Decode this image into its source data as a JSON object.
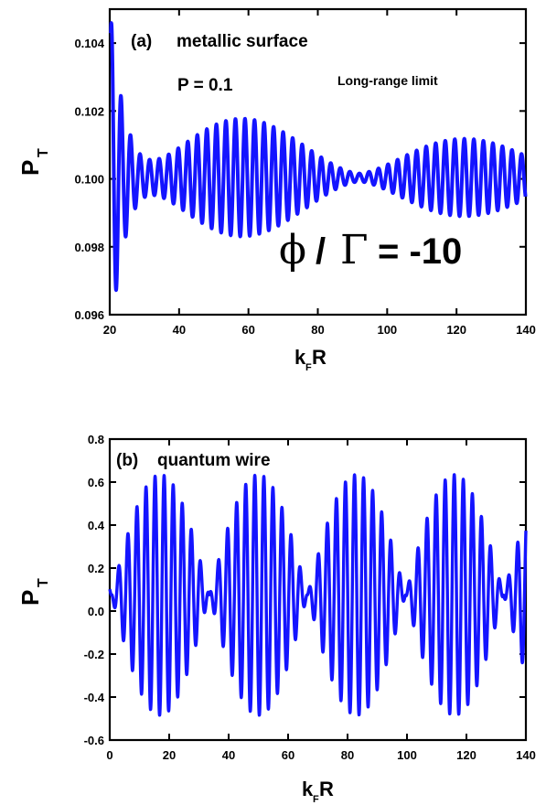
{
  "chart_data": [
    {
      "type": "line",
      "panel_label": "(a)",
      "title": "metallic surface",
      "annotations": {
        "p_value": "P = 0.1",
        "regime": "Long-range limit",
        "phi_gamma": "= -10",
        "phi_symbol": "ϕ",
        "gamma_symbol": "Γ",
        "slash": "/"
      },
      "xlabel_main": "k",
      "xlabel_sub": "F",
      "xlabel_tail": "R",
      "ylabel_main": "P",
      "ylabel_sub": "T",
      "xlim": [
        20,
        140
      ],
      "ylim": [
        0.096,
        0.105
      ],
      "xticks": [
        "20",
        "40",
        "60",
        "80",
        "100",
        "120",
        "140"
      ],
      "yticks": [
        "0.096",
        "0.098",
        "0.100",
        "0.102",
        "0.104"
      ],
      "x_range": [
        20,
        140
      ],
      "y_center": 0.1,
      "series": [
        {
          "description_points": [
            [
              20.5,
              0.1045
            ],
            [
              21.0,
              0.0968
            ],
            [
              22.5,
              0.1034
            ],
            [
              24.0,
              0.0975
            ],
            [
              26.5,
              0.1022
            ],
            [
              28.5,
              0.0985
            ],
            [
              30.5,
              0.1014
            ],
            [
              33.0,
              0.0995
            ],
            [
              35.5,
              0.1008
            ],
            [
              38.5,
              0.0996
            ],
            [
              43.0,
              0.1014
            ],
            [
              48.0,
              0.1019
            ],
            [
              53.0,
              0.1014
            ],
            [
              58.0,
              0.1005
            ],
            [
              62.0,
              0.1002
            ],
            [
              70.0,
              0.1004
            ],
            [
              78.0,
              0.1011
            ],
            [
              85.0,
              0.1009
            ],
            [
              92.0,
              0.1003
            ],
            [
              100.0,
              0.1002
            ],
            [
              106.0,
              0.1004
            ],
            [
              112.0,
              0.1009
            ],
            [
              118.0,
              0.1008
            ],
            [
              126.0,
              0.1004
            ],
            [
              133.0,
              0.1001
            ],
            [
              140.0,
              0.1002
            ]
          ]
        }
      ],
      "color": "#1414ff"
    },
    {
      "type": "line",
      "panel_label": "(b)",
      "title": "quantum wire",
      "xlabel_main": "k",
      "xlabel_sub": "F",
      "xlabel_tail": "R",
      "ylabel_main": "P",
      "ylabel_sub": "T",
      "xlim": [
        0,
        140
      ],
      "ylim": [
        -0.6,
        0.8
      ],
      "xticks": [
        "0",
        "20",
        "40",
        "60",
        "80",
        "100",
        "120",
        "140"
      ],
      "yticks": [
        "-0.6",
        "-0.4",
        "-0.2",
        "0.0",
        "0.2",
        "0.4",
        "0.6",
        "0.8"
      ],
      "series": [
        {
          "center": 0.065,
          "max_amplitude": 0.56,
          "beat_period": 33,
          "beat_peaks": [
            17,
            50,
            83,
            116
          ],
          "min_value": -0.5,
          "max_value": 0.62
        }
      ],
      "color": "#1414ff"
    }
  ]
}
